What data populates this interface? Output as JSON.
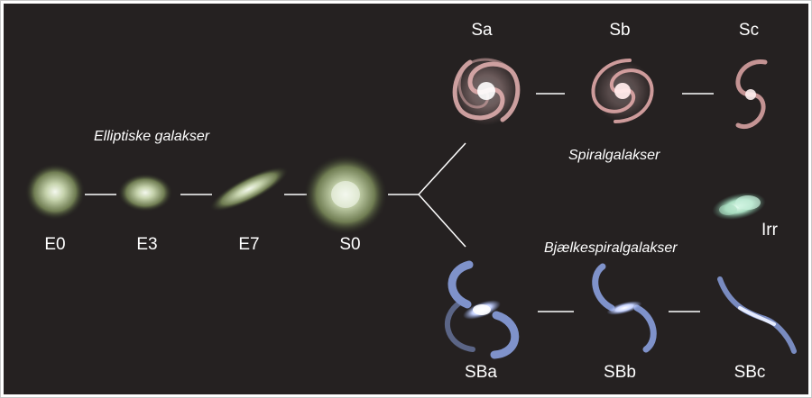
{
  "groups": {
    "elliptical": "Elliptiske galakser",
    "spiral": "Spiralgalakser",
    "barred_spiral": "Bjælkespiralgalakser"
  },
  "types": {
    "e0": "E0",
    "e3": "E3",
    "e7": "E7",
    "s0": "S0",
    "sa": "Sa",
    "sb": "Sb",
    "sc": "Sc",
    "sba": "SBa",
    "sbb": "SBb",
    "sbc": "SBc",
    "irr": "Irr"
  },
  "colors": {
    "background": "#252121",
    "elliptical": "#b9c9a0",
    "spiral": "#e8b4b4",
    "barred_spiral": "#8fa6e8",
    "irregular": "#a8dcc0",
    "connector": "#ffffff"
  }
}
